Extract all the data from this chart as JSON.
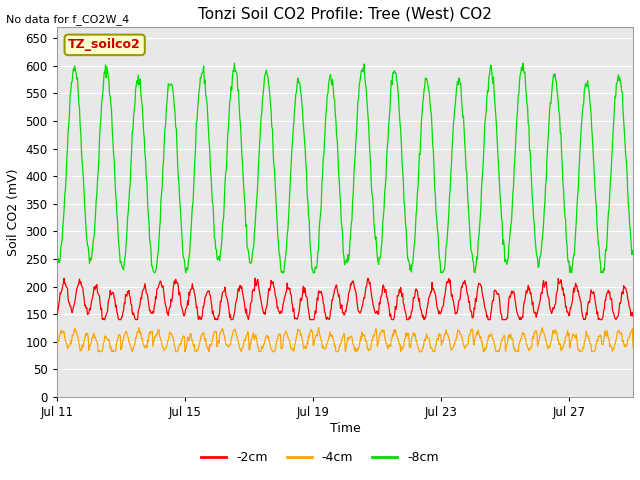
{
  "title": "Tonzi Soil CO2 Profile: Tree (West) CO2",
  "top_left_text": "No data for f_CO2W_4",
  "ylabel": "Soil CO2 (mV)",
  "xlabel": "Time",
  "ylim": [
    0,
    670
  ],
  "yticks": [
    0,
    50,
    100,
    150,
    200,
    250,
    300,
    350,
    400,
    450,
    500,
    550,
    600,
    650
  ],
  "xtick_labels": [
    "Jul 11",
    "Jul 15",
    "Jul 19",
    "Jul 23",
    "Jul 27"
  ],
  "xtick_positions": [
    0,
    4,
    8,
    12,
    16
  ],
  "legend_label": "TZ_soilco2",
  "legend_facecolor": "#ffffcc",
  "legend_edgecolor": "#999900",
  "line_labels": [
    "-2cm",
    "-4cm",
    "-8cm"
  ],
  "line_colors": [
    "#ff0000",
    "#ffa500",
    "#00dd00"
  ],
  "fig_facecolor": "#ffffff",
  "plot_bg_color": "#e8e8e8",
  "grid_color": "#ffffff",
  "title_fontsize": 11,
  "axis_label_fontsize": 9,
  "tick_fontsize": 8.5,
  "n_days": 18,
  "n_points": 864
}
